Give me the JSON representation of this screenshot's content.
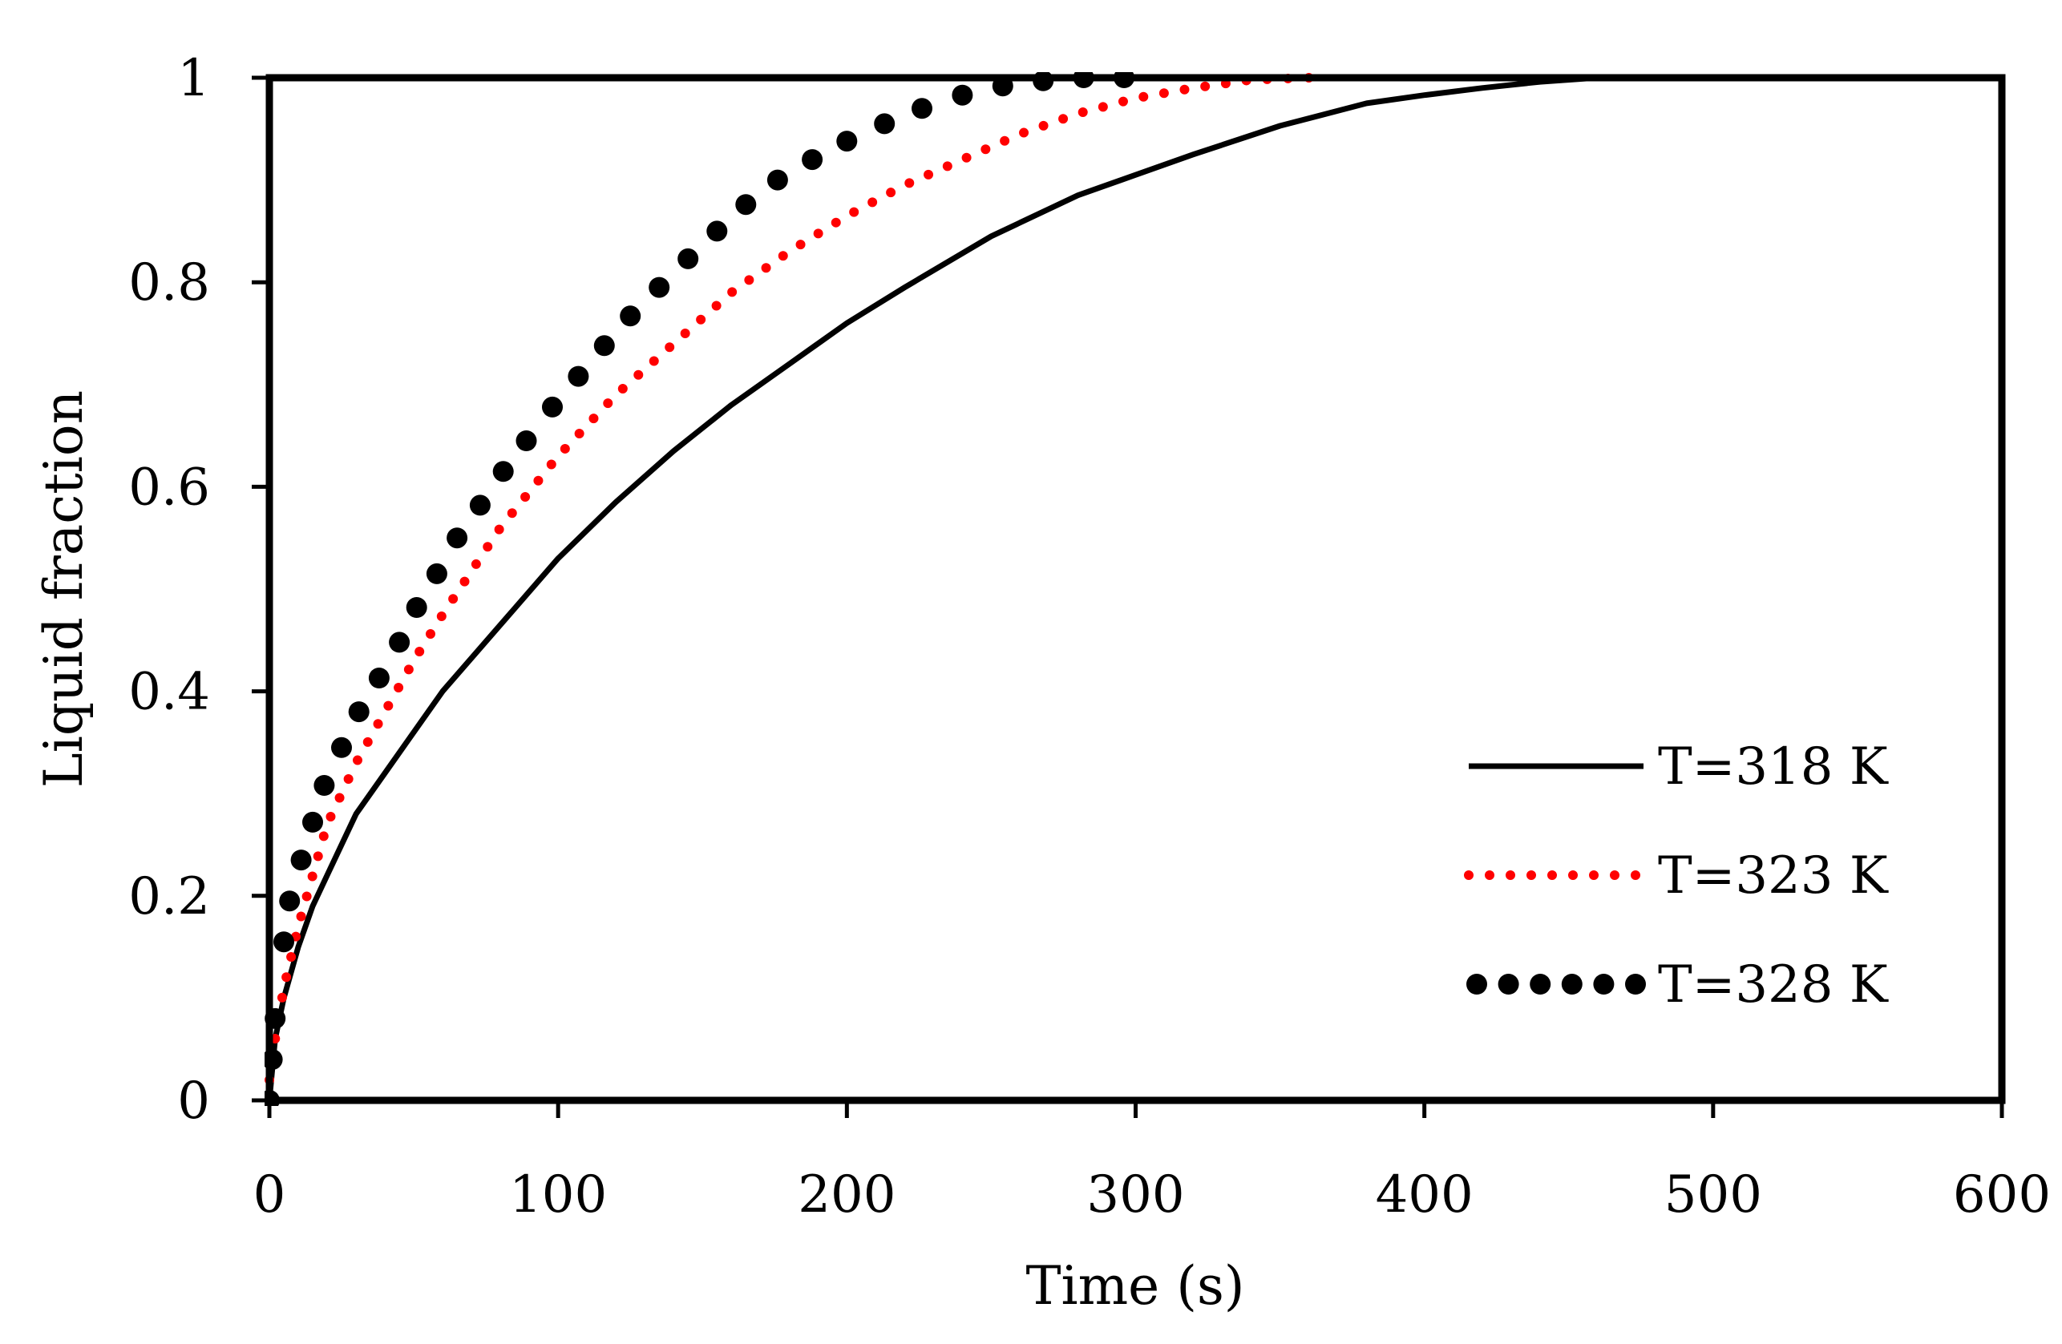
{
  "chart_data": {
    "type": "line",
    "title": "",
    "xlabel": "Time (s)",
    "ylabel": "Liquid fraction",
    "xlim": [
      0,
      600
    ],
    "ylim": [
      0,
      1
    ],
    "x_ticks": [
      0,
      100,
      200,
      300,
      400,
      500,
      600
    ],
    "x_tick_labels": [
      "0",
      "100",
      "200",
      "300",
      "400",
      "500",
      "600"
    ],
    "y_ticks": [
      0,
      0.2,
      0.4,
      0.6,
      0.8,
      1
    ],
    "y_tick_labels": [
      "0",
      "0.2",
      "0.4",
      "0.6",
      "0.8",
      "1"
    ],
    "grid": false,
    "legend_position": "right",
    "series": [
      {
        "name": "T=318 K",
        "style": "solid",
        "color": "#000000",
        "x": [
          0,
          2,
          5,
          10,
          15,
          20,
          30,
          40,
          50,
          60,
          80,
          100,
          120,
          140,
          160,
          180,
          200,
          220,
          250,
          280,
          300,
          320,
          350,
          380,
          400,
          420,
          440,
          460,
          600
        ],
        "y": [
          0,
          0.06,
          0.1,
          0.15,
          0.19,
          0.22,
          0.28,
          0.32,
          0.36,
          0.4,
          0.465,
          0.53,
          0.585,
          0.635,
          0.68,
          0.72,
          0.76,
          0.795,
          0.845,
          0.885,
          0.905,
          0.925,
          0.953,
          0.975,
          0.983,
          0.99,
          0.996,
          1.0,
          1.0
        ]
      },
      {
        "name": "T=323 K",
        "style": "small-dots",
        "color": "#ff0000",
        "x": [
          0,
          2,
          5,
          10,
          15,
          20,
          30,
          40,
          50,
          60,
          80,
          100,
          120,
          140,
          160,
          180,
          200,
          220,
          240,
          260,
          280,
          300,
          320,
          340,
          360
        ],
        "y": [
          0.02,
          0.06,
          0.11,
          0.17,
          0.22,
          0.27,
          0.33,
          0.38,
          0.43,
          0.475,
          0.56,
          0.63,
          0.69,
          0.74,
          0.79,
          0.83,
          0.865,
          0.895,
          0.92,
          0.945,
          0.965,
          0.98,
          0.99,
          0.998,
          1.0
        ]
      },
      {
        "name": "T=328 K",
        "style": "large-dots",
        "color": "#000000",
        "x": [
          0,
          1,
          2,
          5,
          7,
          11,
          15,
          19,
          25,
          31,
          38,
          45,
          51,
          58,
          65,
          73,
          81,
          89,
          98,
          107,
          116,
          125,
          135,
          145,
          155,
          165,
          176,
          188,
          200,
          213,
          226,
          240,
          254,
          268,
          282,
          296
        ],
        "y": [
          0,
          0.04,
          0.08,
          0.155,
          0.195,
          0.235,
          0.272,
          0.308,
          0.345,
          0.38,
          0.413,
          0.448,
          0.482,
          0.515,
          0.55,
          0.582,
          0.615,
          0.645,
          0.678,
          0.708,
          0.738,
          0.767,
          0.795,
          0.823,
          0.85,
          0.876,
          0.9,
          0.92,
          0.938,
          0.955,
          0.97,
          0.983,
          0.992,
          0.997,
          1.0,
          1.0
        ]
      }
    ]
  }
}
